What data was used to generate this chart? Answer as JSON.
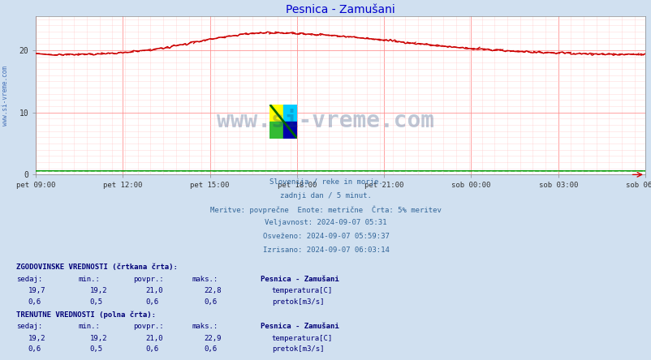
{
  "title": "Pesnica - Zamušani",
  "title_color": "#0000cc",
  "bg_color": "#d0e0f0",
  "plot_bg_color": "#ffffff",
  "grid_color_major": "#ff8888",
  "grid_color_minor": "#ffcccc",
  "xlabel_ticks": [
    "pet 09:00",
    "pet 12:00",
    "pet 15:00",
    "pet 18:00",
    "pet 21:00",
    "sob 00:00",
    "sob 03:00",
    "sob 06:00"
  ],
  "yticks": [
    0,
    10,
    20
  ],
  "ylim": [
    0,
    25.5
  ],
  "xlim_n": 288,
  "temp_color": "#cc0000",
  "pretok_color": "#009900",
  "watermark_color": "#1a3a6e",
  "info_lines": [
    "Slovenija / reke in morje.",
    "zadnji dan / 5 minut.",
    "Meritve: povprečne  Enote: metrične  Črta: 5% meritev",
    "Veljavnost: 2024-09-07 05:31",
    "Osveženo: 2024-09-07 05:59:37",
    "Izrisano: 2024-09-07 06:03:14"
  ],
  "hist_label": "ZGODOVINSKE VREDNOSTI (črtkana črta):",
  "curr_label": "TRENUTNE VREDNOSTI (polna črta):",
  "table_header": [
    "sedaj:",
    "min.:",
    "povpr.:",
    "maks.:"
  ],
  "station_name": "Pesnica - Zamušani",
  "hist_temp_row": [
    "19,7",
    "19,2",
    "21,0",
    "22,8"
  ],
  "hist_pretok_row": [
    "0,6",
    "0,5",
    "0,6",
    "0,6"
  ],
  "curr_temp_row": [
    "19,2",
    "19,2",
    "21,0",
    "22,9"
  ],
  "curr_pretok_row": [
    "0,6",
    "0,5",
    "0,6",
    "0,6"
  ],
  "temp_label": "temperatura[C]",
  "pretok_label": "pretok[m3/s]",
  "left_watermark": "www.si-vreme.com"
}
